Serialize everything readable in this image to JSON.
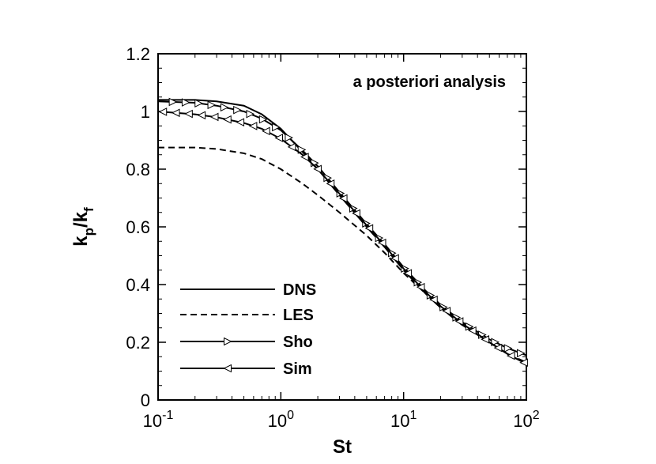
{
  "chart_data": {
    "type": "line",
    "title": "",
    "annotation": "a posteriori analysis",
    "xlabel": "St",
    "ylabel": {
      "main": "k",
      "sub1": "p",
      "slash": "/k",
      "sub2": "f"
    },
    "x_scale": "log",
    "xlim": [
      0.1,
      100
    ],
    "ylim": [
      0,
      1.2
    ],
    "grid": false,
    "legend_position": "bottom-left",
    "x_ticks": [
      {
        "value": 0.1,
        "base": "10",
        "exp": "-1"
      },
      {
        "value": 1,
        "base": "10",
        "exp": "0"
      },
      {
        "value": 10,
        "base": "10",
        "exp": "1"
      },
      {
        "value": 100,
        "base": "10",
        "exp": "2"
      }
    ],
    "y_ticks": [
      "0",
      "0.2",
      "0.4",
      "0.6",
      "0.8",
      "1",
      "1.2"
    ],
    "series": [
      {
        "name": "DNS",
        "style": "solid",
        "marker": "none",
        "x": [
          0.1,
          0.2,
          0.3,
          0.5,
          0.7,
          1,
          1.5,
          2,
          3,
          5,
          7,
          10,
          15,
          20,
          30,
          50,
          70,
          100
        ],
        "y": [
          1.04,
          1.04,
          1.035,
          1.02,
          0.99,
          0.94,
          0.86,
          0.8,
          0.71,
          0.6,
          0.53,
          0.45,
          0.37,
          0.32,
          0.26,
          0.2,
          0.16,
          0.125
        ]
      },
      {
        "name": "LES",
        "style": "dashed",
        "marker": "none",
        "x": [
          0.1,
          0.2,
          0.3,
          0.5,
          0.7,
          1,
          1.5,
          2,
          3,
          5,
          7,
          10,
          15,
          20,
          30,
          50,
          70,
          100
        ],
        "y": [
          0.875,
          0.875,
          0.87,
          0.855,
          0.835,
          0.8,
          0.75,
          0.71,
          0.65,
          0.57,
          0.51,
          0.44,
          0.37,
          0.32,
          0.26,
          0.2,
          0.16,
          0.13
        ]
      },
      {
        "name": "Sho",
        "style": "solid",
        "marker": "triangle-right",
        "x": [
          0.1,
          0.2,
          0.3,
          0.5,
          0.7,
          1,
          1.5,
          2,
          3,
          5,
          7,
          10,
          15,
          20,
          30,
          50,
          70,
          100
        ],
        "y": [
          1.035,
          1.03,
          1.02,
          1.0,
          0.975,
          0.935,
          0.865,
          0.81,
          0.72,
          0.61,
          0.54,
          0.46,
          0.38,
          0.33,
          0.27,
          0.21,
          0.18,
          0.155
        ]
      },
      {
        "name": "Sim",
        "style": "solid",
        "marker": "triangle-left",
        "x": [
          0.1,
          0.2,
          0.3,
          0.5,
          0.7,
          1,
          1.5,
          2,
          3,
          5,
          7,
          10,
          15,
          20,
          30,
          50,
          70,
          100
        ],
        "y": [
          1.0,
          0.99,
          0.98,
          0.96,
          0.94,
          0.905,
          0.85,
          0.8,
          0.715,
          0.605,
          0.535,
          0.455,
          0.375,
          0.325,
          0.265,
          0.2,
          0.16,
          0.125
        ]
      }
    ]
  }
}
